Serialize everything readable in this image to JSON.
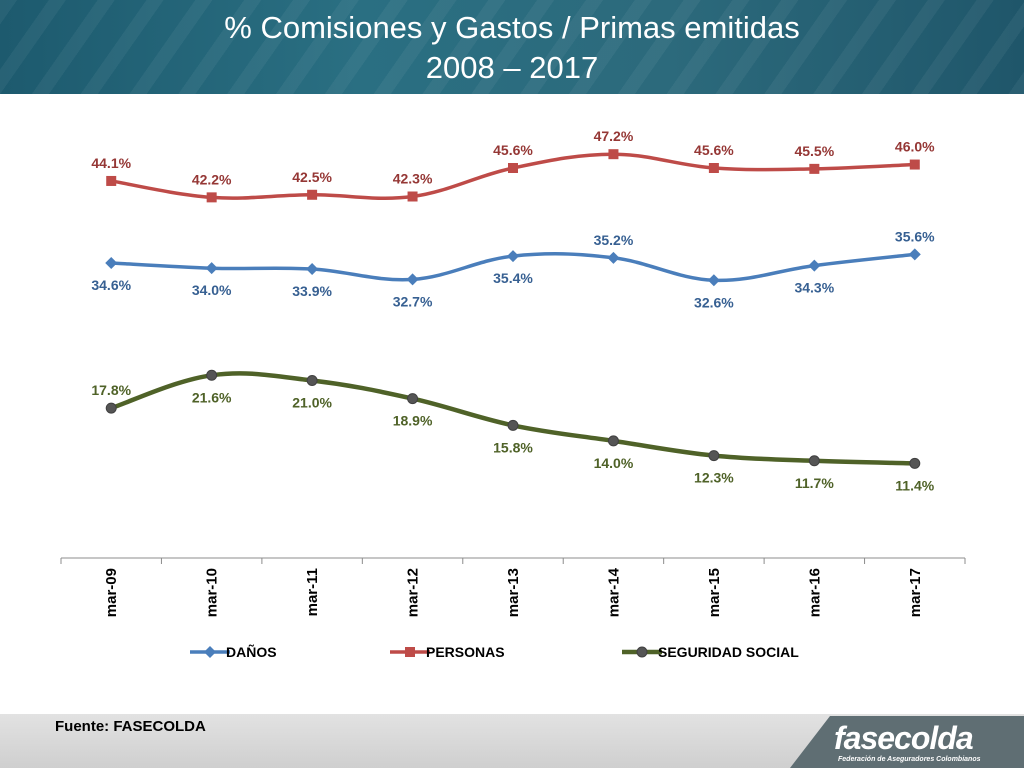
{
  "header": {
    "title_line1": "% Comisiones y Gastos / Primas emitidas",
    "title_line2": "2008 – 2017"
  },
  "footer": {
    "source": "Fuente: FASECOLDA",
    "logo_text": "fasecolda",
    "logo_subtext": "Federación de Aseguradores Colombianos"
  },
  "colors": {
    "header": "#2a6f82",
    "danos": "#4a7ebb",
    "personas": "#be4b48",
    "seguridad_social": "#4f6228",
    "footer": "#d6d6d6",
    "logo": "#5f6e73"
  },
  "chart_data": {
    "type": "line",
    "title": "% Comisiones y Gastos / Primas emitidas 2008 – 2017",
    "categories": [
      "mar-09",
      "mar-10",
      "mar-11",
      "mar-12",
      "mar-13",
      "mar-14",
      "mar-15",
      "mar-16",
      "mar-17"
    ],
    "series": [
      {
        "name": "DAÑOS",
        "color": "#4a7ebb",
        "label_color": "#376092",
        "marker": "diamond",
        "values": [
          34.6,
          34.0,
          33.9,
          32.7,
          35.4,
          35.2,
          32.6,
          34.3,
          35.6
        ],
        "labels": [
          "34.6%",
          "34.0%",
          "33.9%",
          "32.7%",
          "35.4%",
          "35.2%",
          "32.6%",
          "34.3%",
          "35.6%"
        ],
        "label_pos": [
          "below",
          "below",
          "below",
          "below",
          "below",
          "above",
          "below",
          "below",
          "above"
        ]
      },
      {
        "name": "PERSONAS",
        "color": "#be4b48",
        "label_color": "#953735",
        "marker": "square",
        "values": [
          44.1,
          42.2,
          42.5,
          42.3,
          45.6,
          47.2,
          45.6,
          45.5,
          46.0
        ],
        "labels": [
          "44.1%",
          "42.2%",
          "42.5%",
          "42.3%",
          "45.6%",
          "47.2%",
          "45.6%",
          "45.5%",
          "46.0%"
        ],
        "label_pos": [
          "above",
          "above",
          "above",
          "above",
          "above",
          "above",
          "above",
          "above",
          "above"
        ]
      },
      {
        "name": "SEGURIDAD SOCIAL",
        "color": "#4f6228",
        "label_color": "#4f6228",
        "marker": "circle",
        "values": [
          17.8,
          21.6,
          21.0,
          18.9,
          15.8,
          14.0,
          12.3,
          11.7,
          11.4
        ],
        "labels": [
          "17.8%",
          "21.6%",
          "21.0%",
          "18.9%",
          "15.8%",
          "14.0%",
          "12.3%",
          "11.7%",
          "11.4%"
        ],
        "label_pos": [
          "above",
          "below",
          "below",
          "below",
          "below",
          "below",
          "below",
          "below",
          "below"
        ]
      }
    ],
    "ylim": [
      6,
      50
    ],
    "grid": false,
    "legend_position": "bottom"
  }
}
